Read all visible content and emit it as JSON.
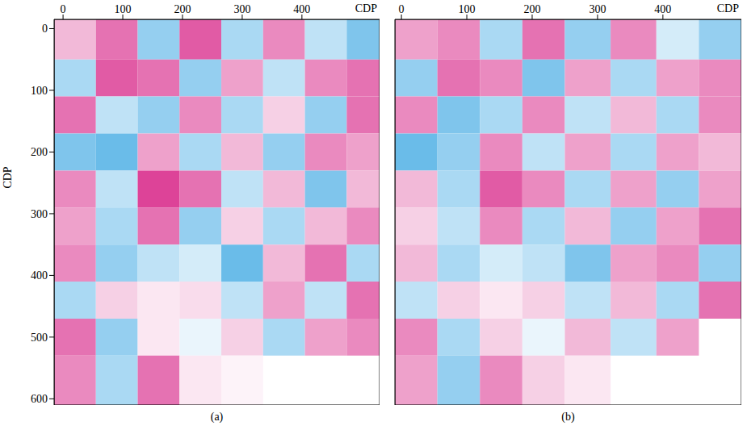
{
  "chart_data": [
    {
      "type": "heatmap",
      "title": "(a)",
      "x_label": "CDP",
      "y_label": "CDP",
      "xlim": [
        -15,
        530
      ],
      "xticks": [
        0,
        100,
        200,
        300,
        400
      ],
      "ylim": [
        -15,
        610
      ],
      "yticks": [
        0,
        100,
        200,
        300,
        400,
        500,
        600
      ],
      "x_bins": [
        -15,
        55,
        125,
        195,
        265,
        335,
        405,
        475,
        530
      ],
      "y_bins": [
        -15,
        50,
        110,
        170,
        230,
        290,
        350,
        410,
        470,
        530,
        610
      ],
      "zlim": [
        -1,
        1
      ],
      "colors": [
        "#2a9fe0",
        "#ffffff",
        "#d4147e"
      ],
      "cells": [
        [
          0.3,
          0.6,
          -0.5,
          0.7,
          -0.4,
          0.5,
          -0.3,
          -0.6
        ],
        [
          -0.4,
          0.7,
          0.6,
          -0.5,
          0.4,
          -0.3,
          0.5,
          0.6
        ],
        [
          0.6,
          -0.3,
          -0.5,
          0.5,
          -0.4,
          0.2,
          -0.5,
          0.6
        ],
        [
          -0.6,
          -0.7,
          0.4,
          -0.4,
          0.3,
          -0.5,
          0.5,
          0.4
        ],
        [
          0.5,
          -0.3,
          0.8,
          0.6,
          -0.3,
          0.3,
          -0.6,
          0.3
        ],
        [
          0.4,
          -0.4,
          0.6,
          -0.5,
          0.2,
          -0.4,
          0.3,
          0.5
        ],
        [
          0.5,
          -0.5,
          -0.3,
          -0.2,
          -0.7,
          0.3,
          0.6,
          -0.4
        ],
        [
          -0.4,
          0.2,
          0.1,
          0.15,
          -0.3,
          0.4,
          -0.3,
          0.6
        ],
        [
          0.6,
          -0.5,
          0.1,
          -0.1,
          0.2,
          -0.4,
          0.4,
          0.5
        ],
        [
          0.5,
          -0.4,
          0.6,
          0.1,
          0.05,
          null,
          null,
          null
        ]
      ]
    },
    {
      "type": "heatmap",
      "title": "(b)",
      "x_label": "CDP",
      "xlim": [
        -10,
        520
      ],
      "xticks": [
        0,
        100,
        200,
        300,
        400
      ],
      "ylim": [
        -15,
        610
      ],
      "yticks": [
        0,
        100,
        200,
        300,
        400,
        500,
        600
      ],
      "tick_labels": "x",
      "x_bins": [
        -10,
        55,
        120,
        185,
        250,
        320,
        390,
        455,
        520
      ],
      "y_bins": [
        -15,
        50,
        110,
        170,
        230,
        290,
        350,
        410,
        470,
        530,
        610
      ],
      "zlim": [
        -1,
        1
      ],
      "colors": [
        "#2a9fe0",
        "#ffffff",
        "#d4147e"
      ],
      "cells": [
        [
          0.4,
          0.5,
          -0.4,
          0.6,
          -0.5,
          0.5,
          -0.2,
          -0.5
        ],
        [
          -0.5,
          0.6,
          0.5,
          -0.6,
          0.4,
          -0.4,
          0.4,
          0.5
        ],
        [
          0.5,
          -0.6,
          -0.4,
          0.5,
          -0.3,
          0.3,
          -0.4,
          0.5
        ],
        [
          -0.7,
          -0.5,
          0.5,
          -0.3,
          0.4,
          -0.4,
          0.4,
          0.3
        ],
        [
          0.3,
          -0.4,
          0.7,
          0.5,
          -0.4,
          0.4,
          -0.5,
          0.4
        ],
        [
          0.2,
          -0.3,
          0.5,
          -0.4,
          0.3,
          -0.5,
          0.4,
          0.6
        ],
        [
          0.3,
          -0.4,
          -0.2,
          -0.3,
          -0.6,
          0.4,
          0.5,
          -0.5
        ],
        [
          -0.3,
          0.2,
          0.1,
          0.2,
          -0.3,
          0.3,
          -0.4,
          0.6
        ],
        [
          0.5,
          -0.4,
          0.2,
          -0.1,
          0.3,
          -0.3,
          0.4,
          null
        ],
        [
          0.4,
          -0.5,
          0.5,
          0.2,
          0.1,
          null,
          null,
          null
        ]
      ]
    }
  ]
}
